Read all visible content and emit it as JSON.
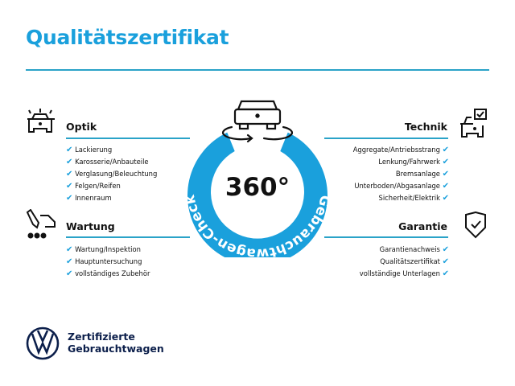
{
  "title": "Qualitätszertifikat",
  "center": {
    "big": "360°",
    "ring_text": "Gebrauchtwagen-Check",
    "ring_color": "#1aa0dc"
  },
  "sections": {
    "optik": {
      "heading": "Optik",
      "icon": "car-lights-icon",
      "items": [
        "Lackierung",
        "Karosserie/Anbauteile",
        "Verglasung/Beleuchtung",
        "Felgen/Reifen",
        "Innenraum"
      ]
    },
    "wartung": {
      "heading": "Wartung",
      "icon": "service-tools-icon",
      "items": [
        "Wartung/Inspektion",
        "Hauptuntersuchung",
        "vollständiges Zubehör"
      ]
    },
    "technik": {
      "heading": "Technik",
      "icon": "car-checkbox-icon",
      "items": [
        "Aggregate/Antriebsstrang",
        "Lenkung/Fahrwerk",
        "Bremsanlage",
        "Unterboden/Abgasanlage",
        "Sicherheit/Elektrik"
      ]
    },
    "garantie": {
      "heading": "Garantie",
      "icon": "shield-check-icon",
      "items": [
        "Garantienachweis",
        "Qualitätszertifikat",
        "vollständige Unterlagen"
      ]
    }
  },
  "check_glyph": "✔",
  "footer": {
    "line1": "Zertifizierte",
    "line2": "Gebrauchtwagen"
  }
}
